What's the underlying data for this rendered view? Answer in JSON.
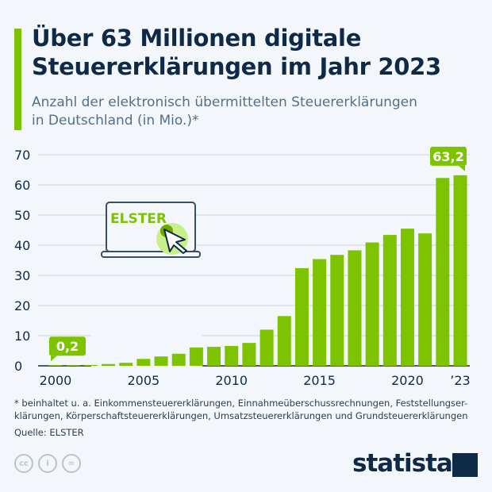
{
  "header": {
    "title_line1": "Über 63 Millionen digitale",
    "title_line2": "Steuererklärungen im Jahr 2023",
    "subtitle_line1": "Anzahl der elektronisch übermittelten Steuererklärungen",
    "subtitle_line2": "in Deutschland (in Mio.)*"
  },
  "chart_data": {
    "type": "bar",
    "categories": [
      "2000",
      "2001",
      "2002",
      "2003",
      "2004",
      "2005",
      "2006",
      "2007",
      "2008",
      "2009",
      "2010",
      "2011",
      "2012",
      "2013",
      "2014",
      "2015",
      "2016",
      "2017",
      "2018",
      "2019",
      "2020",
      "2021",
      "2022",
      "2023"
    ],
    "values": [
      0.2,
      0.2,
      0.3,
      0.6,
      1.0,
      2.3,
      3.1,
      4.0,
      6.1,
      6.3,
      6.6,
      7.6,
      12.0,
      16.5,
      32.4,
      35.4,
      36.8,
      38.3,
      40.9,
      43.4,
      45.5,
      43.9,
      62.3,
      63.2
    ],
    "x_tick_labels": [
      "2000",
      "2005",
      "2010",
      "2015",
      "2020",
      "’23"
    ],
    "y_ticks": [
      0,
      10,
      20,
      30,
      40,
      50,
      60,
      70
    ],
    "ylim": [
      0,
      70
    ],
    "grid": true,
    "annotations": [
      {
        "category": "2000",
        "label": "0,2"
      },
      {
        "category": "2023",
        "label": "63,2"
      }
    ],
    "bar_color": "#7dc300",
    "illustration_label": "ELSTER"
  },
  "footer": {
    "note_line1": "* beinhaltet u. a. Einkommensteuererklärungen, Einnahmeüberschussrechnungen, Feststellungser-",
    "note_line2": "klärungen, Körperschaftsteuererklärungen, Umsatzsteuererklärungen und Grundsteuererklärungen",
    "source": "Quelle: ELSTER",
    "brand": "statista",
    "license_icons": [
      "cc-icon",
      "person-icon",
      "equals-icon"
    ]
  }
}
